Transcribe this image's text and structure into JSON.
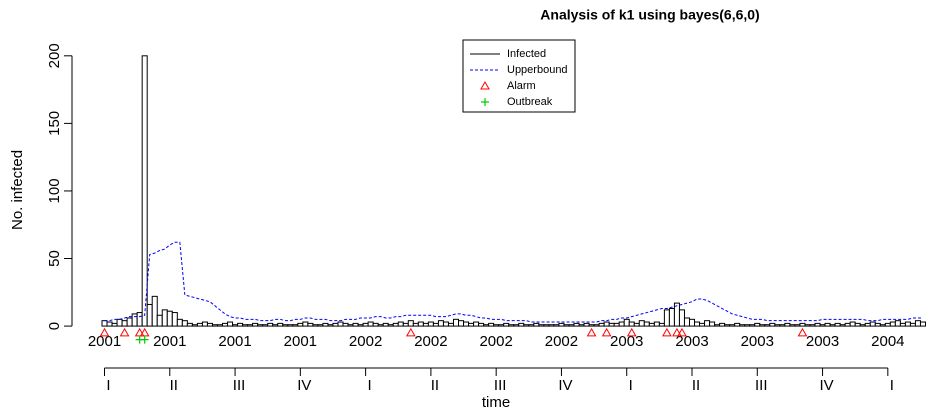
{
  "chart_data": {
    "type": "surveillance",
    "title": "Analysis of k1 using bayes(6,6,0)",
    "x_label": "time",
    "y_label": "No. infected",
    "xlim": [
      0.5,
      165
    ],
    "ylim": [
      -14,
      208
    ],
    "yticks": [
      0,
      50,
      100,
      150,
      200
    ],
    "xticks": [
      {
        "value": 1,
        "label": "2001"
      },
      {
        "value": 14,
        "label": "2001"
      },
      {
        "value": 27,
        "label": "2001"
      },
      {
        "value": 40,
        "label": "2001"
      },
      {
        "value": 53,
        "label": "2002"
      },
      {
        "value": 66,
        "label": "2002"
      },
      {
        "value": 79,
        "label": "2002"
      },
      {
        "value": 92,
        "label": "2002"
      },
      {
        "value": 105,
        "label": "2003"
      },
      {
        "value": 118,
        "label": "2003"
      },
      {
        "value": 131,
        "label": "2003"
      },
      {
        "value": 144,
        "label": "2003"
      },
      {
        "value": 157,
        "label": "2004"
      }
    ],
    "quarter_ticks": [
      {
        "value": 1,
        "label": "I"
      },
      {
        "value": 14,
        "label": "II"
      },
      {
        "value": 27,
        "label": "III"
      },
      {
        "value": 40,
        "label": "IV"
      },
      {
        "value": 53,
        "label": "I"
      },
      {
        "value": 66,
        "label": "II"
      },
      {
        "value": 79,
        "label": "III"
      },
      {
        "value": 92,
        "label": "IV"
      },
      {
        "value": 105,
        "label": "I"
      },
      {
        "value": 118,
        "label": "II"
      },
      {
        "value": 131,
        "label": "III"
      },
      {
        "value": 144,
        "label": "IV"
      },
      {
        "value": 157,
        "label": "I"
      }
    ],
    "series": [
      {
        "name": "Infected",
        "color": "#000000",
        "values": [
          4,
          3,
          2,
          5,
          4,
          6,
          9,
          10,
          200,
          16,
          22,
          8,
          12,
          11,
          10,
          5,
          4,
          2,
          1,
          2,
          3,
          2,
          1,
          1,
          2,
          3,
          1,
          2,
          1,
          1,
          2,
          1,
          1,
          2,
          1,
          2,
          1,
          1,
          1,
          2,
          3,
          2,
          1,
          1,
          2,
          1,
          2,
          3,
          2,
          1,
          2,
          1,
          2,
          3,
          2,
          1,
          2,
          1,
          2,
          3,
          2,
          4,
          2,
          3,
          2,
          3,
          2,
          4,
          3,
          2,
          5,
          4,
          3,
          2,
          3,
          2,
          1,
          2,
          1,
          1,
          2,
          1,
          1,
          2,
          1,
          1,
          2,
          1,
          1,
          1,
          1,
          2,
          1,
          1,
          2,
          1,
          2,
          1,
          1,
          2,
          3,
          2,
          2,
          3,
          5,
          3,
          2,
          4,
          3,
          2,
          3,
          2,
          12,
          13,
          17,
          12,
          6,
          5,
          3,
          2,
          4,
          3,
          1,
          2,
          1,
          1,
          2,
          1,
          1,
          1,
          2,
          1,
          1,
          2,
          1,
          1,
          2,
          1,
          1,
          2,
          1,
          1,
          2,
          1,
          2,
          1,
          2,
          1,
          2,
          3,
          2,
          1,
          2,
          3,
          2,
          1,
          2,
          3,
          4,
          2,
          3,
          2,
          4,
          3
        ]
      },
      {
        "name": "Upperbound",
        "color": "#0000ff",
        "values": [
          4,
          4,
          5,
          5,
          6,
          7,
          7,
          7,
          8,
          53,
          54,
          56,
          57,
          60,
          62,
          62,
          23,
          22,
          21,
          20,
          19,
          18,
          15,
          12,
          9,
          7,
          6,
          6,
          5,
          5,
          5,
          4,
          4,
          4,
          5,
          5,
          4,
          4,
          5,
          5,
          6,
          6,
          5,
          5,
          5,
          4,
          4,
          4,
          5,
          5,
          5,
          6,
          6,
          6,
          7,
          7,
          6,
          6,
          7,
          7,
          8,
          8,
          8,
          8,
          8,
          8,
          7,
          7,
          7,
          8,
          9,
          9,
          8,
          8,
          7,
          6,
          6,
          5,
          5,
          5,
          4,
          4,
          4,
          4,
          4,
          3,
          3,
          3,
          3,
          3,
          3,
          3,
          3,
          3,
          3,
          3,
          3,
          3,
          3,
          4,
          4,
          5,
          5,
          6,
          6,
          7,
          8,
          9,
          10,
          11,
          12,
          13,
          13,
          14,
          15,
          16,
          17,
          18,
          20,
          20,
          19,
          17,
          15,
          13,
          11,
          9,
          8,
          7,
          6,
          5,
          5,
          5,
          4,
          4,
          4,
          4,
          4,
          4,
          4,
          4,
          4,
          4,
          4,
          5,
          5,
          5,
          5,
          5,
          5,
          5,
          5,
          5,
          4,
          4,
          4,
          5,
          5,
          5,
          5,
          5,
          5,
          6,
          6,
          6
        ]
      },
      {
        "name": "Alarm",
        "color": "#ff0000",
        "x": [
          1,
          5,
          8,
          9,
          62,
          98,
          101,
          106,
          113,
          115,
          116,
          140
        ],
        "values": [
          -5,
          -5,
          -5,
          -5,
          -5,
          -5,
          -5,
          -5,
          -5,
          -5,
          -5,
          -5
        ]
      },
      {
        "name": "Outbreak",
        "color": "#00cc00",
        "x": [
          8,
          9
        ],
        "values": [
          -10,
          -10
        ]
      }
    ]
  }
}
